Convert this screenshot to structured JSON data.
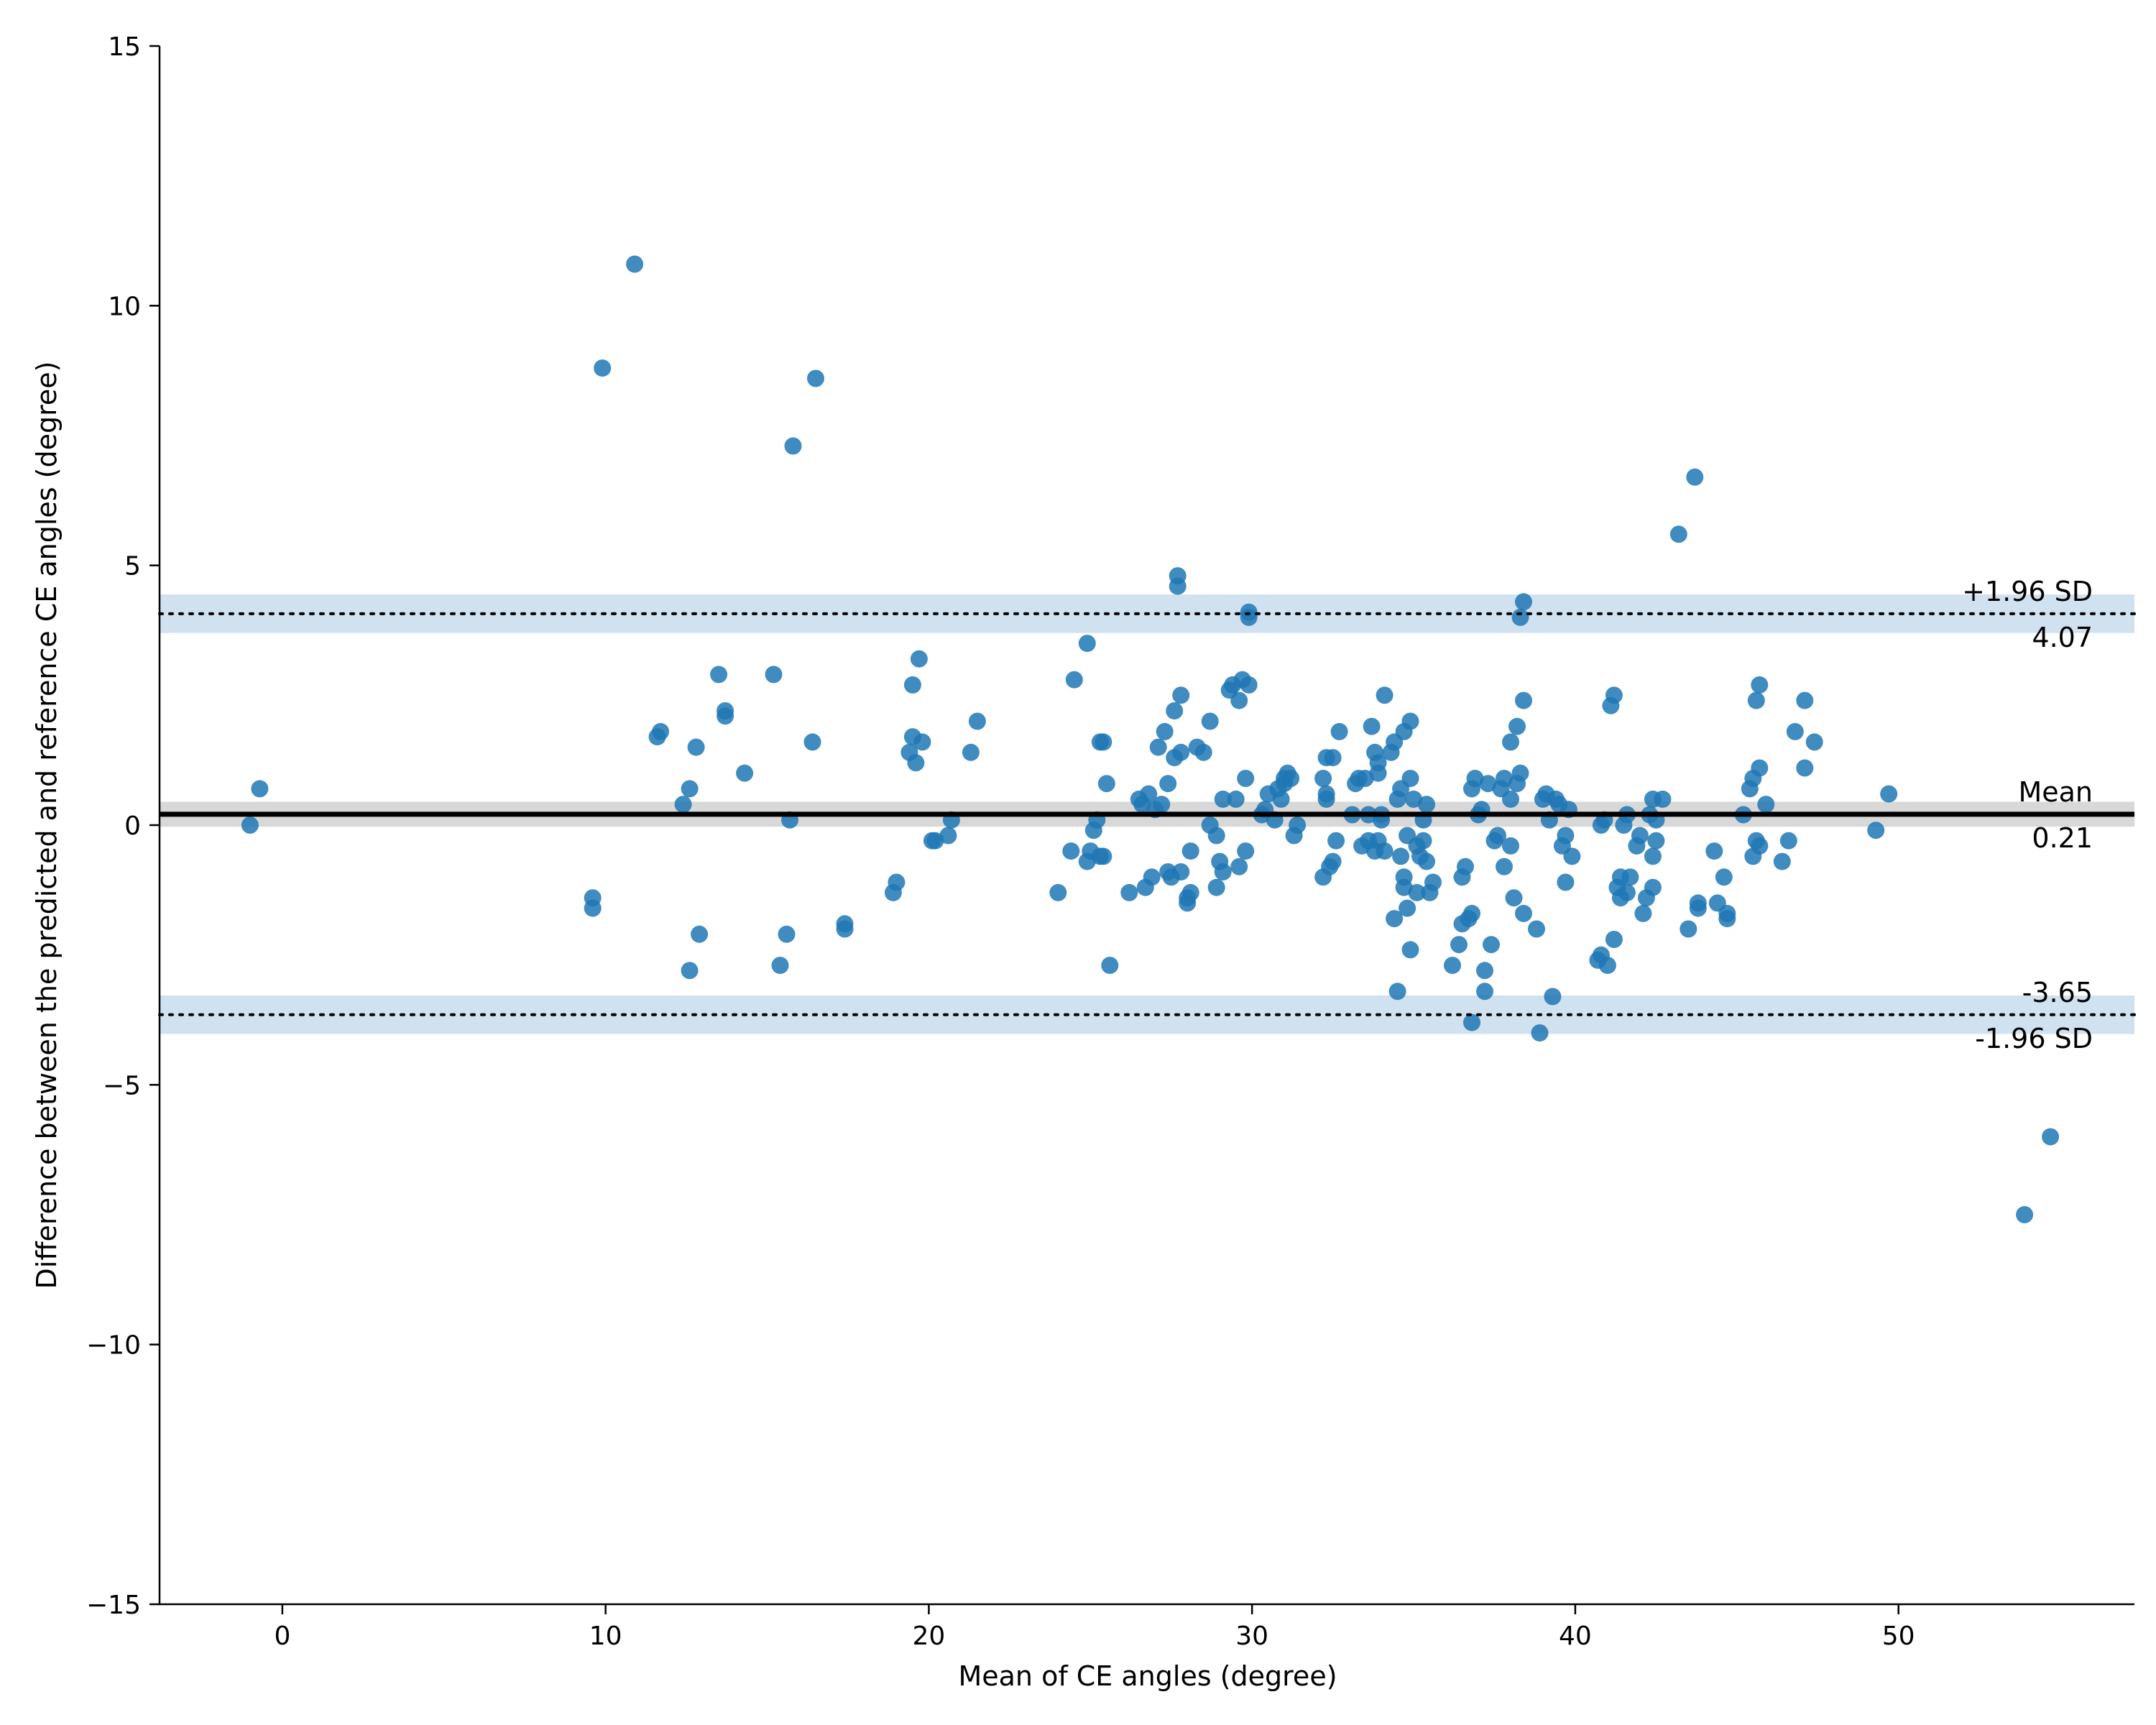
{
  "chart_data": {
    "type": "scatter",
    "title": "",
    "xlabel": "Mean of CE angles (degree)",
    "ylabel": "Difference between the predicted and reference CE angles (degree)",
    "xlim": [
      -3.8,
      57.3
    ],
    "ylim": [
      -15,
      15
    ],
    "xticks": [
      0,
      10,
      20,
      30,
      40,
      50
    ],
    "yticks": [
      -15,
      -10,
      -5,
      0,
      5,
      10,
      15
    ],
    "xtick_labels": [
      "0",
      "10",
      "20",
      "30",
      "40",
      "50"
    ],
    "ytick_labels": [
      "−15",
      "−10",
      "−5",
      "0",
      "5",
      "10",
      "15"
    ],
    "grid": false,
    "point_color": "#1f77b4",
    "mean_line": {
      "value": 0.21,
      "label": "Mean",
      "value_label": "0.21",
      "ci": [
        -0.03,
        0.45
      ]
    },
    "upper_loa": {
      "value": 4.07,
      "label": "+1.96 SD",
      "value_label": "4.07",
      "ci": [
        3.7,
        4.44
      ]
    },
    "lower_loa": {
      "value": -3.65,
      "label": "-1.96 SD",
      "value_label": "-3.65",
      "ci": [
        -4.02,
        -3.28
      ]
    },
    "points": [
      [
        -1.0,
        0.0
      ],
      [
        -0.7,
        0.7
      ],
      [
        9.6,
        -1.6
      ],
      [
        9.6,
        -1.4
      ],
      [
        9.9,
        8.8
      ],
      [
        10.9,
        10.8
      ],
      [
        11.6,
        1.7
      ],
      [
        11.7,
        1.8
      ],
      [
        12.4,
        0.4
      ],
      [
        12.6,
        0.7
      ],
      [
        12.6,
        -2.8
      ],
      [
        12.8,
        1.5
      ],
      [
        12.9,
        -2.1
      ],
      [
        13.5,
        2.9
      ],
      [
        13.7,
        2.2
      ],
      [
        13.7,
        2.1
      ],
      [
        14.3,
        1.0
      ],
      [
        15.2,
        2.9
      ],
      [
        15.4,
        -2.7
      ],
      [
        15.6,
        -2.1
      ],
      [
        15.7,
        0.1
      ],
      [
        15.8,
        7.3
      ],
      [
        16.4,
        1.6
      ],
      [
        16.5,
        8.6
      ],
      [
        17.4,
        -2.0
      ],
      [
        17.4,
        -1.9
      ],
      [
        18.9,
        -1.3
      ],
      [
        19.0,
        -1.1
      ],
      [
        19.4,
        1.4
      ],
      [
        19.5,
        1.7
      ],
      [
        19.5,
        2.7
      ],
      [
        19.6,
        1.2
      ],
      [
        19.7,
        3.2
      ],
      [
        19.8,
        1.6
      ],
      [
        20.1,
        -0.3
      ],
      [
        20.2,
        -0.3
      ],
      [
        20.6,
        -0.2
      ],
      [
        20.7,
        0.1
      ],
      [
        21.3,
        1.4
      ],
      [
        21.5,
        2.0
      ],
      [
        24.0,
        -1.3
      ],
      [
        24.4,
        -0.5
      ],
      [
        24.5,
        2.8
      ],
      [
        24.9,
        -0.7
      ],
      [
        24.9,
        3.5
      ],
      [
        25.0,
        -0.5
      ],
      [
        25.1,
        -0.1
      ],
      [
        25.2,
        0.1
      ],
      [
        25.3,
        1.6
      ],
      [
        25.3,
        -0.6
      ],
      [
        25.4,
        1.6
      ],
      [
        25.4,
        -0.6
      ],
      [
        25.5,
        0.8
      ],
      [
        25.6,
        -2.7
      ],
      [
        26.2,
        -1.3
      ],
      [
        26.5,
        0.5
      ],
      [
        26.6,
        0.4
      ],
      [
        26.7,
        -1.2
      ],
      [
        26.8,
        0.6
      ],
      [
        26.9,
        -1.0
      ],
      [
        27.0,
        0.3
      ],
      [
        27.1,
        1.5
      ],
      [
        27.2,
        0.4
      ],
      [
        27.3,
        1.8
      ],
      [
        27.4,
        0.8
      ],
      [
        27.4,
        -0.9
      ],
      [
        27.5,
        -1.0
      ],
      [
        27.6,
        1.3
      ],
      [
        27.6,
        2.2
      ],
      [
        27.7,
        4.6
      ],
      [
        27.7,
        4.8
      ],
      [
        27.8,
        2.5
      ],
      [
        27.8,
        1.4
      ],
      [
        27.8,
        -0.9
      ],
      [
        28.0,
        -1.4
      ],
      [
        28.0,
        -1.5
      ],
      [
        28.1,
        -0.5
      ],
      [
        28.1,
        -1.3
      ],
      [
        28.3,
        1.5
      ],
      [
        28.5,
        1.4
      ],
      [
        28.7,
        2.0
      ],
      [
        28.7,
        0.0
      ],
      [
        28.9,
        -0.2
      ],
      [
        28.9,
        -1.2
      ],
      [
        29.0,
        -0.7
      ],
      [
        29.1,
        0.5
      ],
      [
        29.1,
        -0.9
      ],
      [
        29.3,
        2.6
      ],
      [
        29.4,
        2.7
      ],
      [
        29.5,
        0.5
      ],
      [
        29.6,
        -0.8
      ],
      [
        29.6,
        2.4
      ],
      [
        29.7,
        2.8
      ],
      [
        29.8,
        -0.5
      ],
      [
        29.8,
        0.9
      ],
      [
        29.9,
        4.1
      ],
      [
        29.9,
        4.0
      ],
      [
        29.9,
        2.7
      ],
      [
        30.3,
        0.2
      ],
      [
        30.4,
        0.3
      ],
      [
        30.5,
        0.6
      ],
      [
        30.7,
        0.1
      ],
      [
        30.8,
        0.7
      ],
      [
        30.9,
        0.5
      ],
      [
        31.0,
        0.8
      ],
      [
        31.0,
        0.9
      ],
      [
        31.1,
        1.0
      ],
      [
        31.2,
        0.9
      ],
      [
        31.3,
        -0.2
      ],
      [
        31.4,
        0.0
      ],
      [
        32.2,
        0.9
      ],
      [
        32.2,
        -1.0
      ],
      [
        32.3,
        0.6
      ],
      [
        32.3,
        0.5
      ],
      [
        32.3,
        1.3
      ],
      [
        32.4,
        -0.8
      ],
      [
        32.5,
        1.3
      ],
      [
        32.5,
        -0.7
      ],
      [
        32.6,
        -0.3
      ],
      [
        32.7,
        1.8
      ],
      [
        33.1,
        0.2
      ],
      [
        33.2,
        0.8
      ],
      [
        33.3,
        0.9
      ],
      [
        33.4,
        -0.4
      ],
      [
        33.5,
        0.9
      ],
      [
        33.6,
        0.2
      ],
      [
        33.6,
        -0.3
      ],
      [
        33.7,
        1.9
      ],
      [
        33.8,
        -0.5
      ],
      [
        33.8,
        1.4
      ],
      [
        33.9,
        1.2
      ],
      [
        33.9,
        1.0
      ],
      [
        33.9,
        -0.3
      ],
      [
        34.0,
        0.1
      ],
      [
        34.0,
        0.2
      ],
      [
        34.1,
        -0.5
      ],
      [
        34.1,
        2.5
      ],
      [
        34.3,
        1.4
      ],
      [
        34.4,
        -1.8
      ],
      [
        34.4,
        1.6
      ],
      [
        34.5,
        -3.2
      ],
      [
        34.5,
        0.5
      ],
      [
        34.6,
        -0.6
      ],
      [
        34.6,
        0.7
      ],
      [
        34.7,
        1.8
      ],
      [
        34.7,
        -1.2
      ],
      [
        34.7,
        -1.0
      ],
      [
        34.8,
        -0.2
      ],
      [
        34.8,
        -1.6
      ],
      [
        34.9,
        2.0
      ],
      [
        34.9,
        0.9
      ],
      [
        34.9,
        -2.4
      ],
      [
        35.0,
        0.5
      ],
      [
        35.1,
        -1.3
      ],
      [
        35.1,
        -0.4
      ],
      [
        35.2,
        -0.6
      ],
      [
        35.3,
        0.1
      ],
      [
        35.3,
        -0.3
      ],
      [
        35.4,
        -0.7
      ],
      [
        35.4,
        0.4
      ],
      [
        35.5,
        -1.3
      ],
      [
        35.6,
        -1.1
      ],
      [
        36.2,
        -2.7
      ],
      [
        36.4,
        -2.3
      ],
      [
        36.5,
        -1.0
      ],
      [
        36.5,
        -1.9
      ],
      [
        36.6,
        -0.8
      ],
      [
        36.7,
        -1.8
      ],
      [
        36.8,
        0.7
      ],
      [
        36.8,
        -1.7
      ],
      [
        36.8,
        -3.8
      ],
      [
        36.9,
        0.9
      ],
      [
        37.0,
        0.2
      ],
      [
        37.1,
        0.3
      ],
      [
        37.2,
        -3.2
      ],
      [
        37.2,
        -2.8
      ],
      [
        37.3,
        0.8
      ],
      [
        37.4,
        -2.3
      ],
      [
        37.5,
        -0.3
      ],
      [
        37.6,
        -0.2
      ],
      [
        37.7,
        0.7
      ],
      [
        37.8,
        0.9
      ],
      [
        37.8,
        -0.8
      ],
      [
        38.0,
        0.5
      ],
      [
        38.0,
        -0.4
      ],
      [
        38.0,
        1.6
      ],
      [
        38.1,
        -1.4
      ],
      [
        38.2,
        0.8
      ],
      [
        38.2,
        1.9
      ],
      [
        38.3,
        1.0
      ],
      [
        38.3,
        4.0
      ],
      [
        38.4,
        4.3
      ],
      [
        38.4,
        2.4
      ],
      [
        38.4,
        -1.7
      ],
      [
        38.8,
        -2.0
      ],
      [
        38.9,
        -4.0
      ],
      [
        39.0,
        0.5
      ],
      [
        39.1,
        0.6
      ],
      [
        39.2,
        0.1
      ],
      [
        39.3,
        -3.3
      ],
      [
        39.4,
        0.5
      ],
      [
        39.5,
        0.4
      ],
      [
        39.6,
        -0.4
      ],
      [
        39.7,
        -0.2
      ],
      [
        39.7,
        -1.1
      ],
      [
        39.8,
        0.3
      ],
      [
        39.9,
        -0.6
      ],
      [
        40.7,
        -2.6
      ],
      [
        40.8,
        -2.5
      ],
      [
        40.8,
        0.0
      ],
      [
        40.9,
        0.1
      ],
      [
        41.0,
        -2.7
      ],
      [
        41.1,
        2.3
      ],
      [
        41.2,
        2.5
      ],
      [
        41.2,
        -2.2
      ],
      [
        41.3,
        -1.2
      ],
      [
        41.4,
        -1.0
      ],
      [
        41.4,
        -1.4
      ],
      [
        41.5,
        0.0
      ],
      [
        41.6,
        0.2
      ],
      [
        41.6,
        -1.3
      ],
      [
        41.7,
        -1.0
      ],
      [
        41.9,
        -0.4
      ],
      [
        42.0,
        -0.2
      ],
      [
        42.1,
        -1.7
      ],
      [
        42.2,
        -1.4
      ],
      [
        42.3,
        0.2
      ],
      [
        42.4,
        -1.2
      ],
      [
        42.4,
        0.5
      ],
      [
        42.4,
        -0.6
      ],
      [
        42.5,
        0.1
      ],
      [
        42.5,
        -0.3
      ],
      [
        42.7,
        0.5
      ],
      [
        43.2,
        5.6
      ],
      [
        43.5,
        -2.0
      ],
      [
        43.7,
        6.7
      ],
      [
        43.8,
        -1.6
      ],
      [
        43.8,
        -1.5
      ],
      [
        44.3,
        -0.5
      ],
      [
        44.4,
        -1.5
      ],
      [
        44.6,
        -1.0
      ],
      [
        44.7,
        -1.7
      ],
      [
        44.7,
        -1.8
      ],
      [
        45.2,
        0.2
      ],
      [
        45.4,
        0.7
      ],
      [
        45.5,
        -0.6
      ],
      [
        45.5,
        0.9
      ],
      [
        45.6,
        2.4
      ],
      [
        45.6,
        -0.3
      ],
      [
        45.7,
        -0.4
      ],
      [
        45.7,
        1.1
      ],
      [
        45.7,
        2.7
      ],
      [
        45.9,
        0.4
      ],
      [
        46.4,
        -0.7
      ],
      [
        46.6,
        -0.3
      ],
      [
        46.8,
        1.8
      ],
      [
        47.1,
        2.4
      ],
      [
        47.1,
        1.1
      ],
      [
        47.4,
        1.6
      ],
      [
        49.3,
        -0.1
      ],
      [
        49.7,
        0.6
      ],
      [
        53.9,
        -7.5
      ],
      [
        54.7,
        -6.0
      ]
    ]
  }
}
